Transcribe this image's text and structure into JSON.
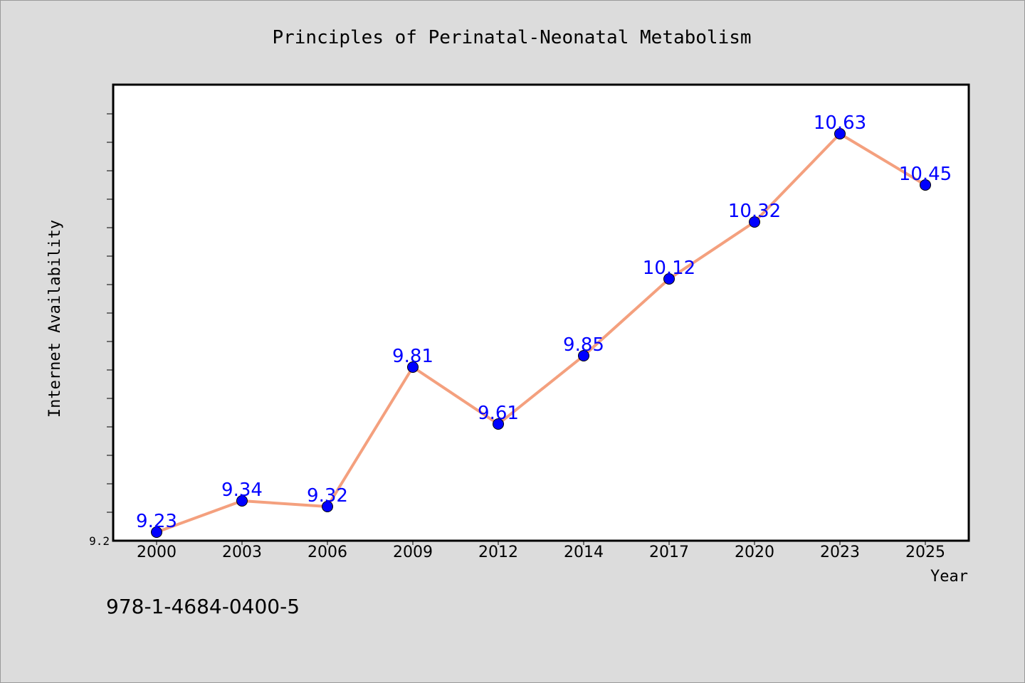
{
  "chart_data": {
    "type": "line",
    "title": "Principles of Perinatal-Neonatal Metabolism",
    "xlabel": "Year",
    "ylabel": "Internet Availability",
    "categories": [
      "2000",
      "2003",
      "2006",
      "2009",
      "2012",
      "2014",
      "2017",
      "2020",
      "2023",
      "2025"
    ],
    "series": [
      {
        "values": [
          9.23,
          9.34,
          9.32,
          9.81,
          9.61,
          9.85,
          10.12,
          10.32,
          10.63,
          10.45
        ],
        "labels": [
          "9.23",
          "9.34",
          "9.32",
          "9.81",
          "9.61",
          "9.85",
          "10.12",
          "10.32",
          "10.63",
          "10.45"
        ],
        "line_color": "#f4a07e",
        "marker_color": "#0000ff"
      }
    ],
    "ylim": [
      9.2,
      10.8
    ],
    "y_tick_labels": [
      "9.2"
    ],
    "grid": false,
    "legend": "none",
    "plot_background": "#ffffff",
    "figure_background": "#dcdcdc"
  },
  "footer": {
    "isbn": "978-1-4684-0400-5"
  }
}
